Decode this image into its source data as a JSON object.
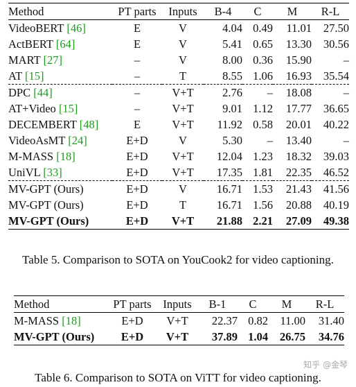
{
  "table5": {
    "headers": [
      "Method",
      "PT parts",
      "Inputs",
      "B-4",
      "C",
      "M",
      "R-L"
    ],
    "rows": [
      {
        "method": "VideoBERT",
        "cite": "[46]",
        "pt": "E",
        "inputs": "V",
        "b": "4.04",
        "c": "0.49",
        "m": "11.01",
        "rl": "27.50"
      },
      {
        "method": "ActBERT",
        "cite": "[64]",
        "pt": "E",
        "inputs": "V",
        "b": "5.41",
        "c": "0.65",
        "m": "13.30",
        "rl": "30.56"
      },
      {
        "method": "MART",
        "cite": "[27]",
        "pt": "–",
        "inputs": "V",
        "b": "8.00",
        "c": "0.36",
        "m": "15.90",
        "rl": "–"
      },
      {
        "method": "AT",
        "cite": "[15]",
        "pt": "–",
        "inputs": "T",
        "b": "8.55",
        "c": "1.06",
        "m": "16.93",
        "rl": "35.54"
      },
      {
        "method": "DPC",
        "cite": "[44]",
        "pt": "–",
        "inputs": "V+T",
        "b": "2.76",
        "c": "–",
        "m": "18.08",
        "rl": "–"
      },
      {
        "method": "AT+Video",
        "cite": "[15]",
        "pt": "–",
        "inputs": "V+T",
        "b": "9.01",
        "c": "1.12",
        "m": "17.77",
        "rl": "36.65"
      },
      {
        "method": "DECEMBERT",
        "cite": "[48]",
        "pt": "E",
        "inputs": "V+T",
        "b": "11.92",
        "c": "0.58",
        "m": "20.01",
        "rl": "40.22"
      },
      {
        "method": "VideoAsMT",
        "cite": "[24]",
        "pt": "E+D",
        "inputs": "V",
        "b": "5.30",
        "c": "–",
        "m": "13.40",
        "rl": "–"
      },
      {
        "method": "M-MASS",
        "cite": "[18]",
        "pt": "E+D",
        "inputs": "V+T",
        "b": "12.04",
        "c": "1.23",
        "m": "18.32",
        "rl": "39.03"
      },
      {
        "method": "UniVL",
        "cite": "[33]",
        "pt": "E+D",
        "inputs": "V+T",
        "b": "17.35",
        "c": "1.81",
        "m": "22.35",
        "rl": "46.52"
      },
      {
        "method": "MV-GPT (Ours)",
        "cite": "",
        "pt": "E+D",
        "inputs": "V",
        "b": "16.71",
        "c": "1.53",
        "m": "21.43",
        "rl": "41.56"
      },
      {
        "method": "MV-GPT (Ours)",
        "cite": "",
        "pt": "E+D",
        "inputs": "T",
        "b": "16.71",
        "c": "1.56",
        "m": "20.88",
        "rl": "40.19"
      },
      {
        "method": "MV-GPT (Ours)",
        "cite": "",
        "pt": "E+D",
        "inputs": "V+T",
        "b": "21.88",
        "c": "2.21",
        "m": "27.09",
        "rl": "49.38"
      }
    ],
    "caption": "Table 5. Comparison to SOTA on YouCook2 for video captioning."
  },
  "table6": {
    "headers": [
      "Method",
      "PT parts",
      "Inputs",
      "B-1",
      "C",
      "M",
      "R-L"
    ],
    "rows": [
      {
        "method": "M-MASS",
        "cite": "[18]",
        "pt": "E+D",
        "inputs": "V+T",
        "b": "22.37",
        "c": "0.82",
        "m": "11.00",
        "rl": "31.40"
      },
      {
        "method": "MV-GPT (Ours)",
        "cite": "",
        "pt": "E+D",
        "inputs": "V+T",
        "b": "37.89",
        "c": "1.04",
        "m": "26.75",
        "rl": "34.76"
      }
    ],
    "caption": "Table 6. Comparison to SOTA on ViTT for video captioning."
  },
  "watermark": "知乎 @金琴"
}
